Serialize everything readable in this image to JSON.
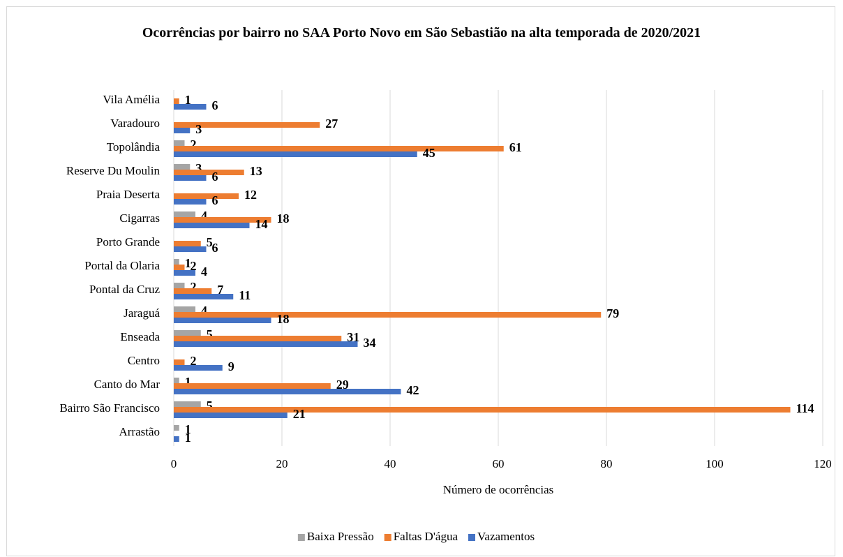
{
  "chart_data": {
    "type": "bar",
    "orientation": "horizontal",
    "title": "Ocorrências por bairro no SAA Porto Novo em São Sebastião na alta temporada de 2020/2021",
    "xlabel": "Número de ocorrências",
    "categories": [
      "Arrastão",
      "Bairro São Francisco",
      "Canto do Mar",
      "Centro",
      "Enseada",
      "Jaraguá",
      "Pontal da Cruz",
      "Portal da Olaria",
      "Porto Grande",
      "Cigarras",
      "Praia Deserta",
      "Reserve Du Moulin",
      "Topolândia",
      "Varadouro",
      "Vila Amélia"
    ],
    "series": [
      {
        "name": "Baixa Pressão",
        "color": "#a5a5a5",
        "values": [
          1,
          5,
          1,
          null,
          5,
          4,
          2,
          1,
          null,
          4,
          null,
          3,
          2,
          null,
          null
        ]
      },
      {
        "name": "Faltas D'água",
        "color": "#ed7d31",
        "values": [
          null,
          114,
          29,
          2,
          31,
          79,
          7,
          2,
          5,
          18,
          12,
          13,
          61,
          27,
          1
        ]
      },
      {
        "name": "Vazamentos",
        "color": "#4472c4",
        "values": [
          1,
          21,
          42,
          9,
          34,
          18,
          11,
          4,
          6,
          14,
          6,
          6,
          45,
          3,
          6
        ]
      }
    ],
    "xlim": [
      0,
      120
    ],
    "xticks": [
      0,
      20,
      40,
      60,
      80,
      100,
      120
    ],
    "grid": true,
    "legend": "bottom"
  }
}
